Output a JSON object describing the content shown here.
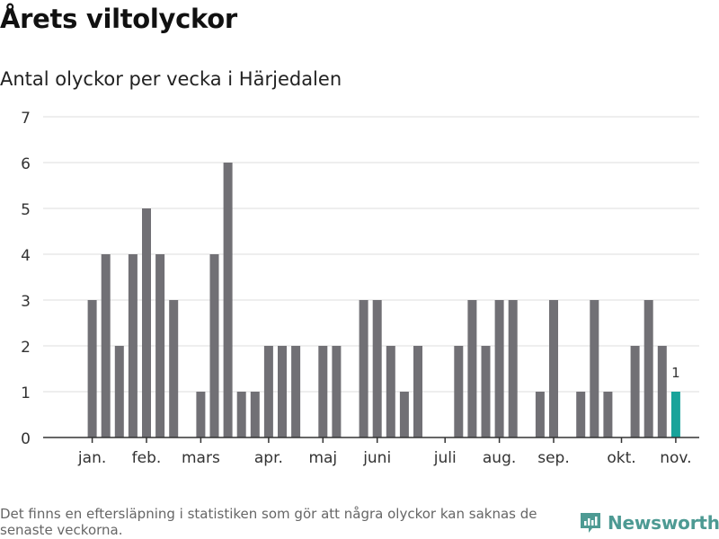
{
  "header": {
    "title": "Årets viltolyckor",
    "subtitle": "Antal olyckor per vecka i Härjedalen"
  },
  "footer": {
    "note": "Det finns en eftersläpning i statistiken som gör att några olyckor kan saknas de senaste veckorna.",
    "brand": "Newsworthy"
  },
  "colors": {
    "bar": "#717075",
    "highlight": "#18a39a",
    "grid": "#dddddd",
    "axis": "#333333",
    "brand": "#4d9a93"
  },
  "chart_data": {
    "type": "bar",
    "ylim": [
      0,
      7
    ],
    "yticks": [
      0,
      1,
      2,
      3,
      4,
      5,
      6,
      7
    ],
    "grid": true,
    "weeks": [
      1,
      2,
      3,
      4,
      5,
      6,
      7,
      8,
      9,
      10,
      11,
      12,
      13,
      14,
      15,
      16,
      17,
      18,
      19,
      20,
      21,
      22,
      23,
      24,
      25,
      26,
      27,
      28,
      29,
      30,
      31,
      32,
      33,
      34,
      35,
      36,
      37,
      38,
      39,
      40,
      41,
      42,
      43,
      44,
      45,
      46,
      47
    ],
    "values": [
      0,
      3,
      4,
      2,
      4,
      5,
      4,
      3,
      0,
      1,
      4,
      6,
      1,
      1,
      2,
      2,
      2,
      0,
      2,
      2,
      0,
      3,
      3,
      2,
      1,
      2,
      0,
      0,
      2,
      3,
      2,
      3,
      3,
      0,
      1,
      3,
      0,
      1,
      3,
      1,
      0,
      2,
      3,
      2,
      1,
      0,
      0
    ],
    "month_ticks": [
      {
        "label": "jan.",
        "week": 2
      },
      {
        "label": "feb.",
        "week": 6
      },
      {
        "label": "mars",
        "week": 10
      },
      {
        "label": "apr.",
        "week": 15
      },
      {
        "label": "maj",
        "week": 19
      },
      {
        "label": "juni",
        "week": 23
      },
      {
        "label": "juli",
        "week": 28
      },
      {
        "label": "aug.",
        "week": 32
      },
      {
        "label": "sep.",
        "week": 36
      },
      {
        "label": "okt.",
        "week": 41
      },
      {
        "label": "nov.",
        "week": 45
      }
    ],
    "highlight": {
      "week": 45,
      "value": 1,
      "label": "1"
    }
  }
}
